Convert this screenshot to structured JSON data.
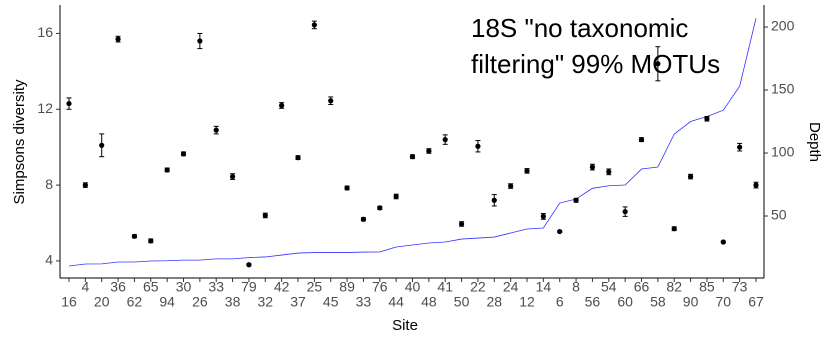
{
  "chart_data": {
    "type": "scatter-line",
    "annotation": [
      "18S \"no taxonomic",
      "filtering\" 99% MOTUs"
    ],
    "xlabel": "Site",
    "ylabel": "Simpsons  diversity",
    "y2label": "Depth",
    "categories": [
      "16",
      "4",
      "20",
      "36",
      "62",
      "65",
      "94",
      "30",
      "26",
      "33",
      "38",
      "79",
      "32",
      "42",
      "37",
      "25",
      "45",
      "89",
      "33",
      "76",
      "44",
      "40",
      "48",
      "41",
      "50",
      "22",
      "28",
      "24",
      "12",
      "14",
      "6",
      "8",
      "56",
      "54",
      "60",
      "66",
      "58",
      "82",
      "90",
      "85",
      "70",
      "73",
      "67"
    ],
    "diversity": {
      "color": "#000000",
      "values": [
        12.3,
        8.0,
        10.1,
        15.7,
        5.3,
        5.06,
        8.8,
        9.65,
        15.6,
        10.9,
        8.45,
        3.8,
        6.4,
        12.2,
        9.45,
        16.45,
        12.45,
        7.85,
        6.2,
        6.8,
        7.4,
        9.5,
        9.8,
        10.4,
        5.95,
        10.05,
        7.2,
        7.95,
        8.75,
        6.35,
        5.55,
        7.2,
        8.95,
        8.7,
        6.6,
        10.4,
        14.4,
        5.7,
        8.45,
        11.5,
        5.0,
        10.0,
        8.0
      ],
      "errors": [
        0.3,
        0.12,
        0.6,
        0.15,
        0.08,
        0.1,
        0.1,
        0.1,
        0.4,
        0.2,
        0.15,
        0.05,
        0.12,
        0.15,
        0.1,
        0.2,
        0.2,
        0.1,
        0.08,
        0.08,
        0.12,
        0.1,
        0.12,
        0.25,
        0.12,
        0.3,
        0.3,
        0.12,
        0.12,
        0.15,
        0.05,
        0.1,
        0.15,
        0.15,
        0.25,
        0.1,
        0.9,
        0.1,
        0.12,
        0.12,
        0.05,
        0.2,
        0.15
      ]
    },
    "depth": {
      "color": "#3333ff",
      "axis": "y2",
      "values": [
        10.3,
        11.9,
        12,
        13.5,
        13.5,
        14.3,
        14.5,
        15,
        15,
        16,
        16,
        17,
        17.5,
        19,
        20.6,
        21,
        21,
        21,
        21.4,
        21.5,
        25.4,
        27,
        28.6,
        29.4,
        31.7,
        32.5,
        33.3,
        36.5,
        39.7,
        40.5,
        60.3,
        63.5,
        72,
        74,
        74.6,
        87.3,
        88.9,
        115,
        125,
        129,
        134,
        153,
        207
      ]
    },
    "ylim": [
      3.1,
      17.5
    ],
    "yticks": [
      4,
      8,
      12,
      16
    ],
    "y2lim": [
      0.8,
      217.5
    ],
    "y2ticks": [
      50,
      100,
      150,
      200
    ]
  }
}
